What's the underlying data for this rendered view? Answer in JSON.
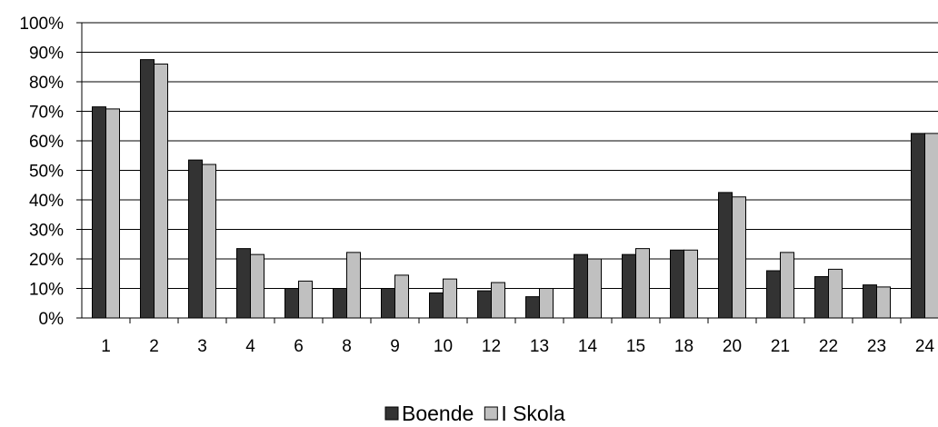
{
  "chart_data": {
    "type": "bar",
    "categories": [
      "1",
      "2",
      "3",
      "4",
      "6",
      "8",
      "9",
      "10",
      "12",
      "13",
      "14",
      "15",
      "18",
      "20",
      "21",
      "22",
      "23",
      "24"
    ],
    "series": [
      {
        "name": "Boende",
        "color": "#333333",
        "values": [
          71.5,
          87.5,
          53.5,
          23.5,
          10,
          10,
          10,
          8.5,
          9.2,
          7.2,
          21.5,
          21.5,
          23,
          42.5,
          16,
          14,
          11.2,
          62.5
        ]
      },
      {
        "name": "I Skola",
        "color": "#c0c0c0",
        "values": [
          70.8,
          86,
          52,
          21.5,
          12.5,
          22.2,
          14.5,
          13.2,
          12,
          10,
          20,
          23.5,
          23,
          41,
          22.2,
          16.5,
          10.5,
          62.5
        ]
      }
    ],
    "ylim": [
      0,
      100
    ],
    "y_ticks": [
      "0%",
      "10%",
      "20%",
      "30%",
      "40%",
      "50%",
      "60%",
      "70%",
      "80%",
      "90%",
      "100%"
    ],
    "grid": true,
    "legend_position": "bottom"
  }
}
